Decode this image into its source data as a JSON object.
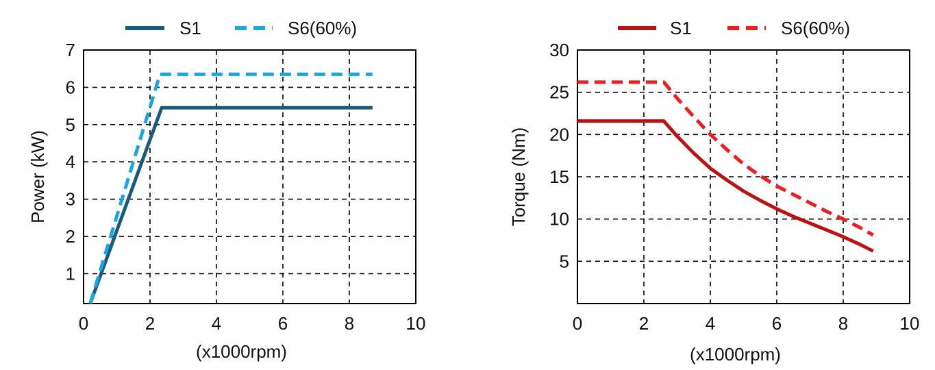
{
  "chart_data": [
    {
      "type": "line",
      "title": "",
      "xlabel": "(x1000rpm)",
      "ylabel": "Power (kW)",
      "xlim": [
        0,
        10
      ],
      "ylim": [
        0.2,
        7
      ],
      "xticks": [
        0,
        2,
        4,
        6,
        8,
        10
      ],
      "yticks": [
        1,
        2,
        3,
        4,
        5,
        6,
        7
      ],
      "grid": true,
      "legend": "top",
      "series": [
        {
          "name": "S1",
          "color": "#1a5a7a",
          "style": "solid",
          "x": [
            0.2,
            2.35,
            8.7
          ],
          "y": [
            0.2,
            5.45,
            5.45
          ]
        },
        {
          "name": "S6(60%)",
          "color": "#1aa7e0",
          "style": "dashed",
          "x": [
            0.2,
            2.3,
            8.7
          ],
          "y": [
            0.2,
            6.35,
            6.35
          ]
        }
      ]
    },
    {
      "type": "line",
      "title": "",
      "xlabel": "(x1000rpm)",
      "ylabel": "Torque  (Nm)",
      "xlim": [
        0,
        10
      ],
      "ylim": [
        0,
        30
      ],
      "xticks": [
        0,
        2,
        4,
        6,
        8,
        10
      ],
      "yticks": [
        5,
        10,
        15,
        20,
        25,
        30
      ],
      "grid": true,
      "legend": "top",
      "series": [
        {
          "name": "S1",
          "color": "#bb1111",
          "style": "solid",
          "x": [
            0,
            2.6,
            3.0,
            3.5,
            4.0,
            4.5,
            5.0,
            5.5,
            6.0,
            6.5,
            7.0,
            7.5,
            8.0,
            8.5,
            8.9
          ],
          "y": [
            21.6,
            21.6,
            19.8,
            17.8,
            16.0,
            14.6,
            13.3,
            12.2,
            11.2,
            10.3,
            9.5,
            8.7,
            7.9,
            7.0,
            6.2
          ]
        },
        {
          "name": "S6(60%)",
          "color": "#ee1c1c",
          "style": "dashed",
          "x": [
            0,
            2.6,
            3.0,
            3.5,
            4.0,
            4.5,
            5.0,
            5.5,
            6.0,
            6.5,
            7.0,
            7.5,
            8.0,
            8.5,
            8.9
          ],
          "y": [
            26.2,
            26.2,
            24.3,
            22.1,
            20.0,
            18.2,
            16.5,
            15.1,
            13.9,
            12.9,
            11.9,
            10.9,
            10.0,
            9.0,
            8.1
          ]
        }
      ]
    }
  ]
}
